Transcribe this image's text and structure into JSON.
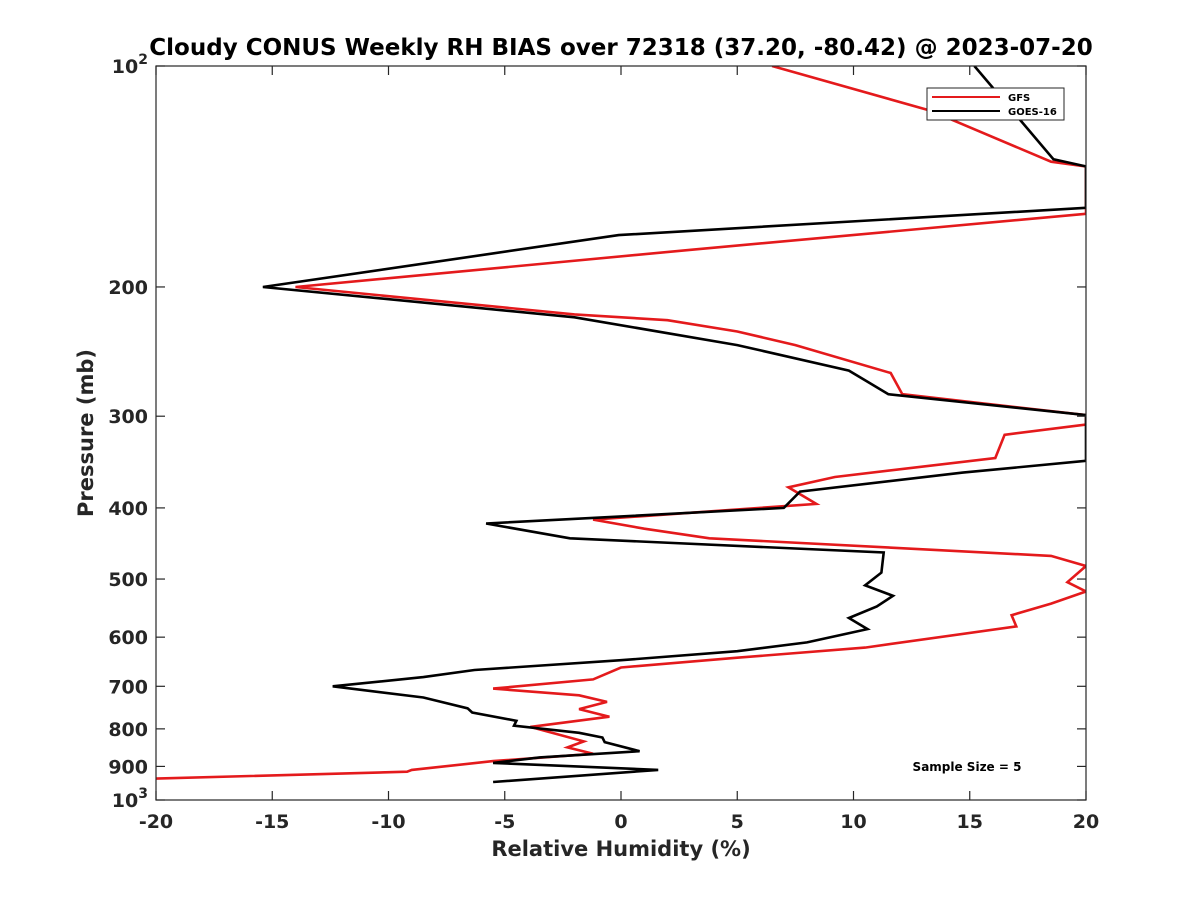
{
  "chart_data": {
    "type": "line",
    "title": "Cloudy CONUS Weekly RH BIAS over 72318 (37.20, -80.42) @ 2023-07-20",
    "xlabel": "Relative Humidity (%)",
    "ylabel": "Pressure (mb)",
    "xlim": [
      -20,
      20
    ],
    "ylim": [
      100,
      1000
    ],
    "yscale": "log",
    "y_reversed": true,
    "x_ticks": [
      -20,
      -15,
      -10,
      -5,
      0,
      5,
      10,
      15,
      20
    ],
    "x_tick_labels": [
      "-20",
      "-15",
      "-10",
      "-5",
      "0",
      "5",
      "10",
      "15",
      "20"
    ],
    "y_ticks": [
      100,
      200,
      300,
      400,
      500,
      600,
      700,
      800,
      900,
      1000
    ],
    "y_tick_labels": [
      {
        "base": "10",
        "exp": "2"
      },
      {
        "base": "200",
        "exp": ""
      },
      {
        "base": "300",
        "exp": ""
      },
      {
        "base": "400",
        "exp": ""
      },
      {
        "base": "500",
        "exp": ""
      },
      {
        "base": "600",
        "exp": ""
      },
      {
        "base": "700",
        "exp": ""
      },
      {
        "base": "800",
        "exp": ""
      },
      {
        "base": "900",
        "exp": ""
      },
      {
        "base": "10",
        "exp": "3"
      }
    ],
    "grid": false,
    "legend_position": "top-right",
    "annotation": "Sample Size = 5",
    "series": [
      {
        "name": "GFS",
        "color": "#e41a1c",
        "points": [
          [
            6.5,
            100
          ],
          [
            13.3,
            115
          ],
          [
            18.5,
            135
          ],
          [
            20,
            137
          ],
          [
            20,
            159
          ],
          [
            3,
            178
          ],
          [
            -14,
            200
          ],
          [
            -2,
            218
          ],
          [
            2,
            222
          ],
          [
            5,
            230
          ],
          [
            7.5,
            240
          ],
          [
            11.6,
            262
          ],
          [
            12.1,
            280
          ],
          [
            20,
            299
          ],
          [
            20,
            308
          ],
          [
            16.5,
            318
          ],
          [
            16.1,
            342
          ],
          [
            9.2,
            363
          ],
          [
            7.2,
            375
          ],
          [
            8.4,
            395
          ],
          [
            -1.2,
            415
          ],
          [
            1,
            427
          ],
          [
            3.8,
            440
          ],
          [
            18.5,
            465
          ],
          [
            20,
            480
          ],
          [
            19.2,
            505
          ],
          [
            20,
            520
          ],
          [
            18.5,
            540
          ],
          [
            16.8,
            560
          ],
          [
            17.0,
            580
          ],
          [
            10.5,
            620
          ],
          [
            5,
            640
          ],
          [
            0,
            660
          ],
          [
            -1.2,
            685
          ],
          [
            -5.5,
            705
          ],
          [
            -1.8,
            720
          ],
          [
            -0.6,
            735
          ],
          [
            -1.8,
            752
          ],
          [
            -0.5,
            770
          ],
          [
            -3.9,
            795
          ],
          [
            -1.6,
            832
          ],
          [
            -2.3,
            848
          ],
          [
            -1.2,
            865
          ],
          [
            -5.5,
            885
          ],
          [
            -9,
            910
          ],
          [
            -9.2,
            915
          ],
          [
            -20,
            935
          ]
        ]
      },
      {
        "name": "GOES-16",
        "color": "#000000",
        "points": [
          [
            15.2,
            100
          ],
          [
            18.6,
            134
          ],
          [
            20,
            137
          ],
          [
            20,
            156
          ],
          [
            -0.1,
            170
          ],
          [
            -15.4,
            200
          ],
          [
            -2,
            220
          ],
          [
            5,
            240
          ],
          [
            9.8,
            260
          ],
          [
            11.5,
            280
          ],
          [
            20,
            299
          ],
          [
            20,
            345
          ],
          [
            14.7,
            358
          ],
          [
            7.7,
            380
          ],
          [
            7.0,
            400
          ],
          [
            -5.8,
            420
          ],
          [
            -2.2,
            440
          ],
          [
            11.3,
            460
          ],
          [
            11.2,
            490
          ],
          [
            10.5,
            510
          ],
          [
            11.7,
            527
          ],
          [
            11.0,
            545
          ],
          [
            9.8,
            565
          ],
          [
            10.6,
            585
          ],
          [
            8.0,
            610
          ],
          [
            5.0,
            627
          ],
          [
            0,
            645
          ],
          [
            -6.3,
            665
          ],
          [
            -8.5,
            680
          ],
          [
            -12.4,
            700
          ],
          [
            -8.5,
            725
          ],
          [
            -6.6,
            750
          ],
          [
            -6.4,
            760
          ],
          [
            -4.5,
            780
          ],
          [
            -4.6,
            792
          ],
          [
            -1.8,
            810
          ],
          [
            -0.8,
            822
          ],
          [
            -0.7,
            834
          ],
          [
            0.8,
            858
          ],
          [
            -3.5,
            875
          ],
          [
            -5.5,
            890
          ],
          [
            1.6,
            910
          ],
          [
            -5.5,
            945
          ]
        ]
      }
    ]
  }
}
